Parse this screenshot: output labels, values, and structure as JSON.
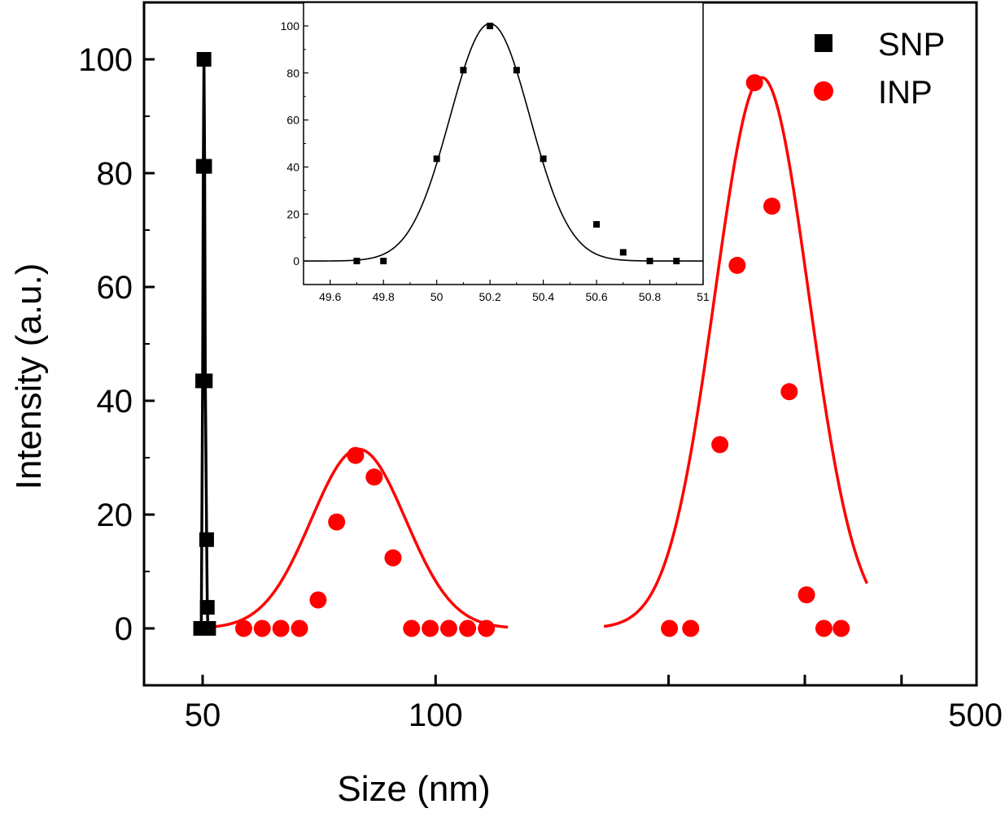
{
  "chart_data": [
    {
      "type": "scatter",
      "role": "main",
      "xlabel": "Size (nm)",
      "ylabel": "Intensity (a.u.)",
      "x_scale": "log",
      "xlim": [
        42,
        500
      ],
      "ylim": [
        -10,
        110
      ],
      "x_ticks": [
        50,
        100,
        500
      ],
      "x_minor_ticks": [
        200,
        300,
        400
      ],
      "y_ticks": [
        0,
        20,
        40,
        60,
        80,
        100
      ],
      "grid": false,
      "legend_position": "top-right",
      "series": [
        {
          "name": "SNP",
          "color": "#000000",
          "marker": "square",
          "x": [
            49.7,
            49.8,
            50.0,
            50.1,
            50.2,
            50.3,
            50.4,
            50.6,
            50.7,
            50.8,
            50.9
          ],
          "y": [
            0,
            0,
            43.5,
            81.2,
            100,
            81.2,
            43.5,
            15.6,
            3.7,
            0,
            0
          ]
        },
        {
          "name": "INP",
          "color": "#ff0000",
          "marker": "circle",
          "x": [
            56.5,
            59.7,
            63.1,
            66.7,
            70.5,
            74.5,
            78.8,
            83.3,
            88.1,
            93.1,
            98.4,
            104.0,
            110.0,
            116.3,
            200.5,
            213.6,
            233.0,
            245.3,
            258.3,
            272.0,
            286.4,
            301.5,
            317.5,
            334.3
          ],
          "y": [
            0,
            0,
            0,
            0,
            5,
            18.7,
            30.4,
            26.6,
            12.4,
            0,
            0,
            0,
            0,
            0,
            0,
            0,
            32.3,
            63.8,
            95.9,
            74.2,
            41.6,
            5.9,
            0,
            0
          ]
        }
      ],
      "fit_curves": [
        {
          "color": "#000000",
          "x_range": [
            49.3,
            51.0
          ],
          "center": 50.2,
          "sigma": 0.15,
          "amplitude": 101
        },
        {
          "color": "#ff0000",
          "x_range": [
            51.0,
            124.0
          ],
          "center": 79.5,
          "sigma": 0.0611,
          "amplitude": 31.5
        },
        {
          "color": "#ff0000",
          "x_range": [
            165.0,
            361.0
          ],
          "center": 264.0,
          "sigma": 0.0607,
          "amplitude": 96.8
        }
      ]
    },
    {
      "type": "scatter",
      "role": "inset",
      "xlim": [
        49.5,
        51.0
      ],
      "ylim": [
        -10,
        110
      ],
      "x_ticks": [
        "49.6",
        "49.8",
        "50",
        "50.2",
        "50.4",
        "50.6",
        "50.8",
        "51"
      ],
      "y_ticks": [
        "0",
        "20",
        "40",
        "60",
        "80",
        "100"
      ],
      "series": [
        {
          "color": "#000000",
          "marker": "square",
          "x": [
            49.7,
            49.8,
            50.0,
            50.1,
            50.2,
            50.3,
            50.4,
            50.6,
            50.7,
            50.8,
            50.9
          ],
          "y": [
            0,
            0,
            43.5,
            81.2,
            100,
            81.2,
            43.5,
            15.6,
            3.7,
            0,
            0
          ]
        }
      ],
      "fit_curves": [
        {
          "color": "#000000",
          "x_range": [
            49.5,
            51.0
          ],
          "center": 50.2,
          "sigma": 0.15,
          "amplitude": 101
        }
      ]
    }
  ]
}
